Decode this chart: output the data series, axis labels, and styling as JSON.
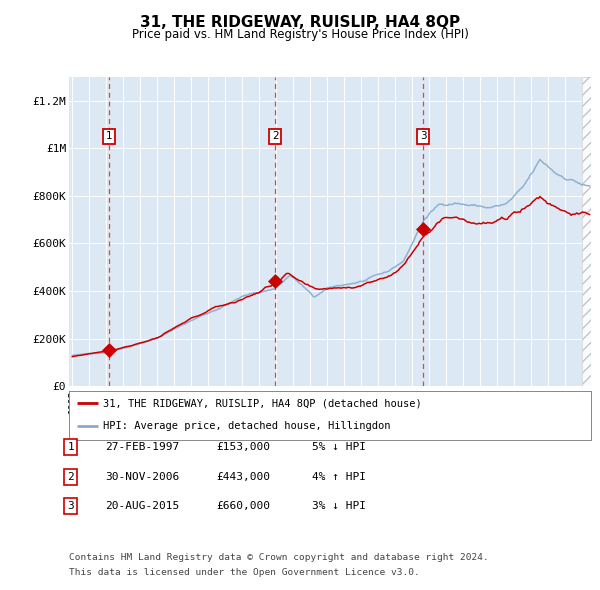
{
  "title": "31, THE RIDGEWAY, RUISLIP, HA4 8QP",
  "subtitle": "Price paid vs. HM Land Registry's House Price Index (HPI)",
  "footer_line1": "Contains HM Land Registry data © Crown copyright and database right 2024.",
  "footer_line2": "This data is licensed under the Open Government Licence v3.0.",
  "legend_label_red": "31, THE RIDGEWAY, RUISLIP, HA4 8QP (detached house)",
  "legend_label_blue": "HPI: Average price, detached house, Hillingdon",
  "transactions": [
    {
      "num": 1,
      "date": "27-FEB-1997",
      "price": 153000,
      "year": 1997.15,
      "pct": "5%",
      "dir": "↓"
    },
    {
      "num": 2,
      "date": "30-NOV-2006",
      "price": 443000,
      "year": 2006.92,
      "pct": "4%",
      "dir": "↑"
    },
    {
      "num": 3,
      "date": "20-AUG-2015",
      "price": 660000,
      "year": 2015.64,
      "pct": "3%",
      "dir": "↓"
    }
  ],
  "background_color": "#dce9f5",
  "red_line_color": "#cc0000",
  "blue_line_color": "#88aacc",
  "grid_color": "#ffffff",
  "dashed_color": "#dd4444",
  "ylim": [
    0,
    1300000
  ],
  "xlim_start": 1994.8,
  "xlim_end": 2025.5,
  "yticks": [
    0,
    200000,
    400000,
    600000,
    800000,
    1000000,
    1200000
  ],
  "ytick_labels": [
    "£0",
    "£200K",
    "£400K",
    "£600K",
    "£800K",
    "£1M",
    "£1.2M"
  ],
  "table_rows": [
    [
      "1",
      "27-FEB-1997",
      "£153,000",
      "5% ↓ HPI"
    ],
    [
      "2",
      "30-NOV-2006",
      "£443,000",
      "4% ↑ HPI"
    ],
    [
      "3",
      "20-AUG-2015",
      "£660,000",
      "3% ↓ HPI"
    ]
  ]
}
